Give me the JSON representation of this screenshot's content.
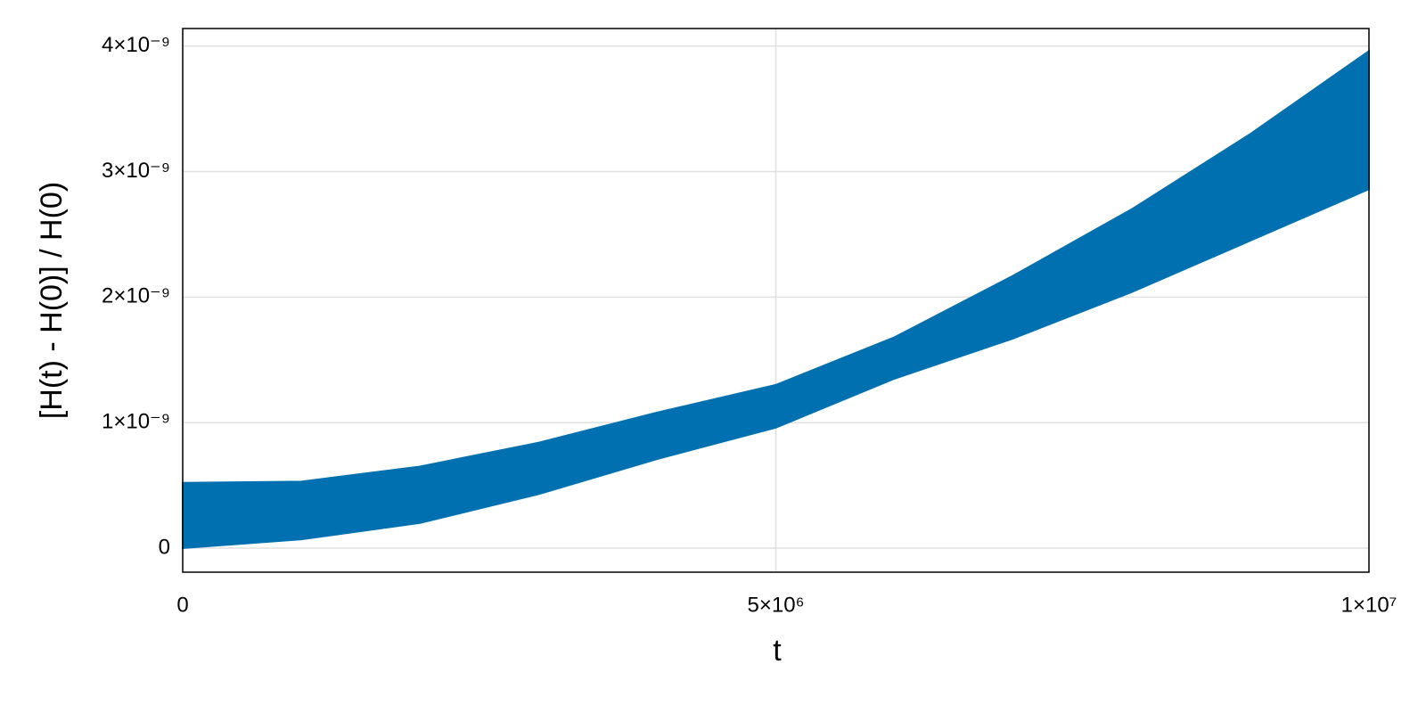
{
  "chart_data": {
    "type": "band",
    "color": "#0070b0",
    "grid": true,
    "xlabel": "t",
    "ylabel": "[H(t) - H(0)] / H(0)",
    "x": [
      0,
      1000000,
      2000000,
      3000000,
      4000000,
      5000000,
      6000000,
      7000000,
      8000000,
      9000000,
      10000000
    ],
    "upper": [
      5.2e-10,
      5.3e-10,
      6.5e-10,
      8.4e-10,
      1.08e-09,
      1.3e-09,
      1.68e-09,
      2.17e-09,
      2.7e-09,
      3.3e-09,
      3.96e-09
    ],
    "lower": [
      0,
      7e-11,
      2e-10,
      4.3e-10,
      7.1e-10,
      9.6e-10,
      1.35e-09,
      1.67e-09,
      2.04e-09,
      2.45e-09,
      2.86e-09
    ],
    "xlim": [
      0,
      10000000
    ],
    "xticks": [
      0,
      {
        "value": 5000000,
        "label": "5×10⁶"
      },
      {
        "value": 10000000,
        "label": "1×10⁷"
      }
    ],
    "ylim": [
      -1.92e-10,
      4.14e-09
    ],
    "yticks": [
      0,
      {
        "value": 1e-09,
        "label": "1×10⁻⁹"
      },
      {
        "value": 2e-09,
        "label": "2×10⁻⁹"
      },
      {
        "value": 3e-09,
        "label": "3×10⁻⁹"
      },
      {
        "value": 4e-09,
        "label": "4×10⁻⁹"
      }
    ]
  }
}
